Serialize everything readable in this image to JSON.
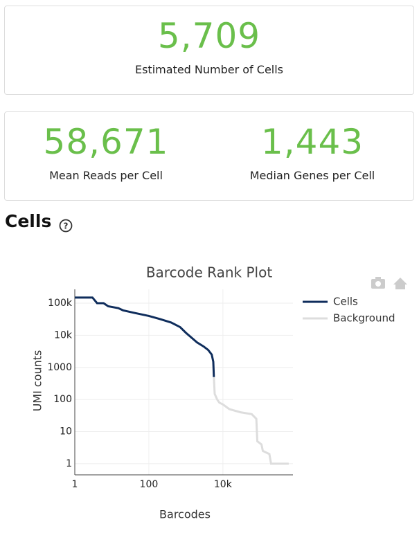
{
  "metrics": [
    {
      "value": "5,709",
      "label": "Estimated Number of Cells"
    },
    {
      "value": "58,671",
      "label": "Mean Reads per Cell"
    },
    {
      "value": "1,443",
      "label": "Median Genes per Cell"
    }
  ],
  "section_title": "Cells",
  "chart_data": {
    "type": "line",
    "title": "Barcode Rank Plot",
    "x_label": "Barcodes",
    "y_label": "UMI counts",
    "xscale": "log",
    "yscale": "log",
    "grid": true,
    "legend": "right",
    "xlim": [
      1,
      780000
    ],
    "ylim": [
      0.45,
      270000
    ],
    "xticks": [
      1,
      100,
      {
        "value": 10000,
        "label": "10k"
      }
    ],
    "yticks": [
      {
        "value": 100000,
        "label": "100k"
      },
      {
        "value": 10000,
        "label": "10k"
      },
      1000,
      100,
      10,
      1
    ],
    "series": [
      {
        "name": "Cells",
        "color": "#0f2d5c",
        "x": [
          1,
          3,
          4,
          6,
          8,
          15,
          20,
          40,
          100,
          200,
          400,
          700,
          1000,
          1500,
          2000,
          3000,
          4000,
          5000,
          5500,
          5709
        ],
        "values": [
          150000,
          150000,
          100000,
          100000,
          80000,
          70000,
          60000,
          50000,
          40000,
          32000,
          25000,
          18000,
          12000,
          8000,
          6000,
          4500,
          3500,
          2500,
          1500,
          500
        ]
      },
      {
        "name": "Background",
        "color": "#dddddd",
        "x": [
          5709,
          6000,
          7000,
          8000,
          10000,
          15000,
          30000,
          60000,
          80000,
          85000,
          110000,
          120000,
          180000,
          200000,
          600000
        ],
        "values": [
          500,
          150,
          100,
          80,
          70,
          50,
          40,
          35,
          25,
          5,
          4,
          2.5,
          2,
          1,
          1
        ]
      }
    ]
  }
}
